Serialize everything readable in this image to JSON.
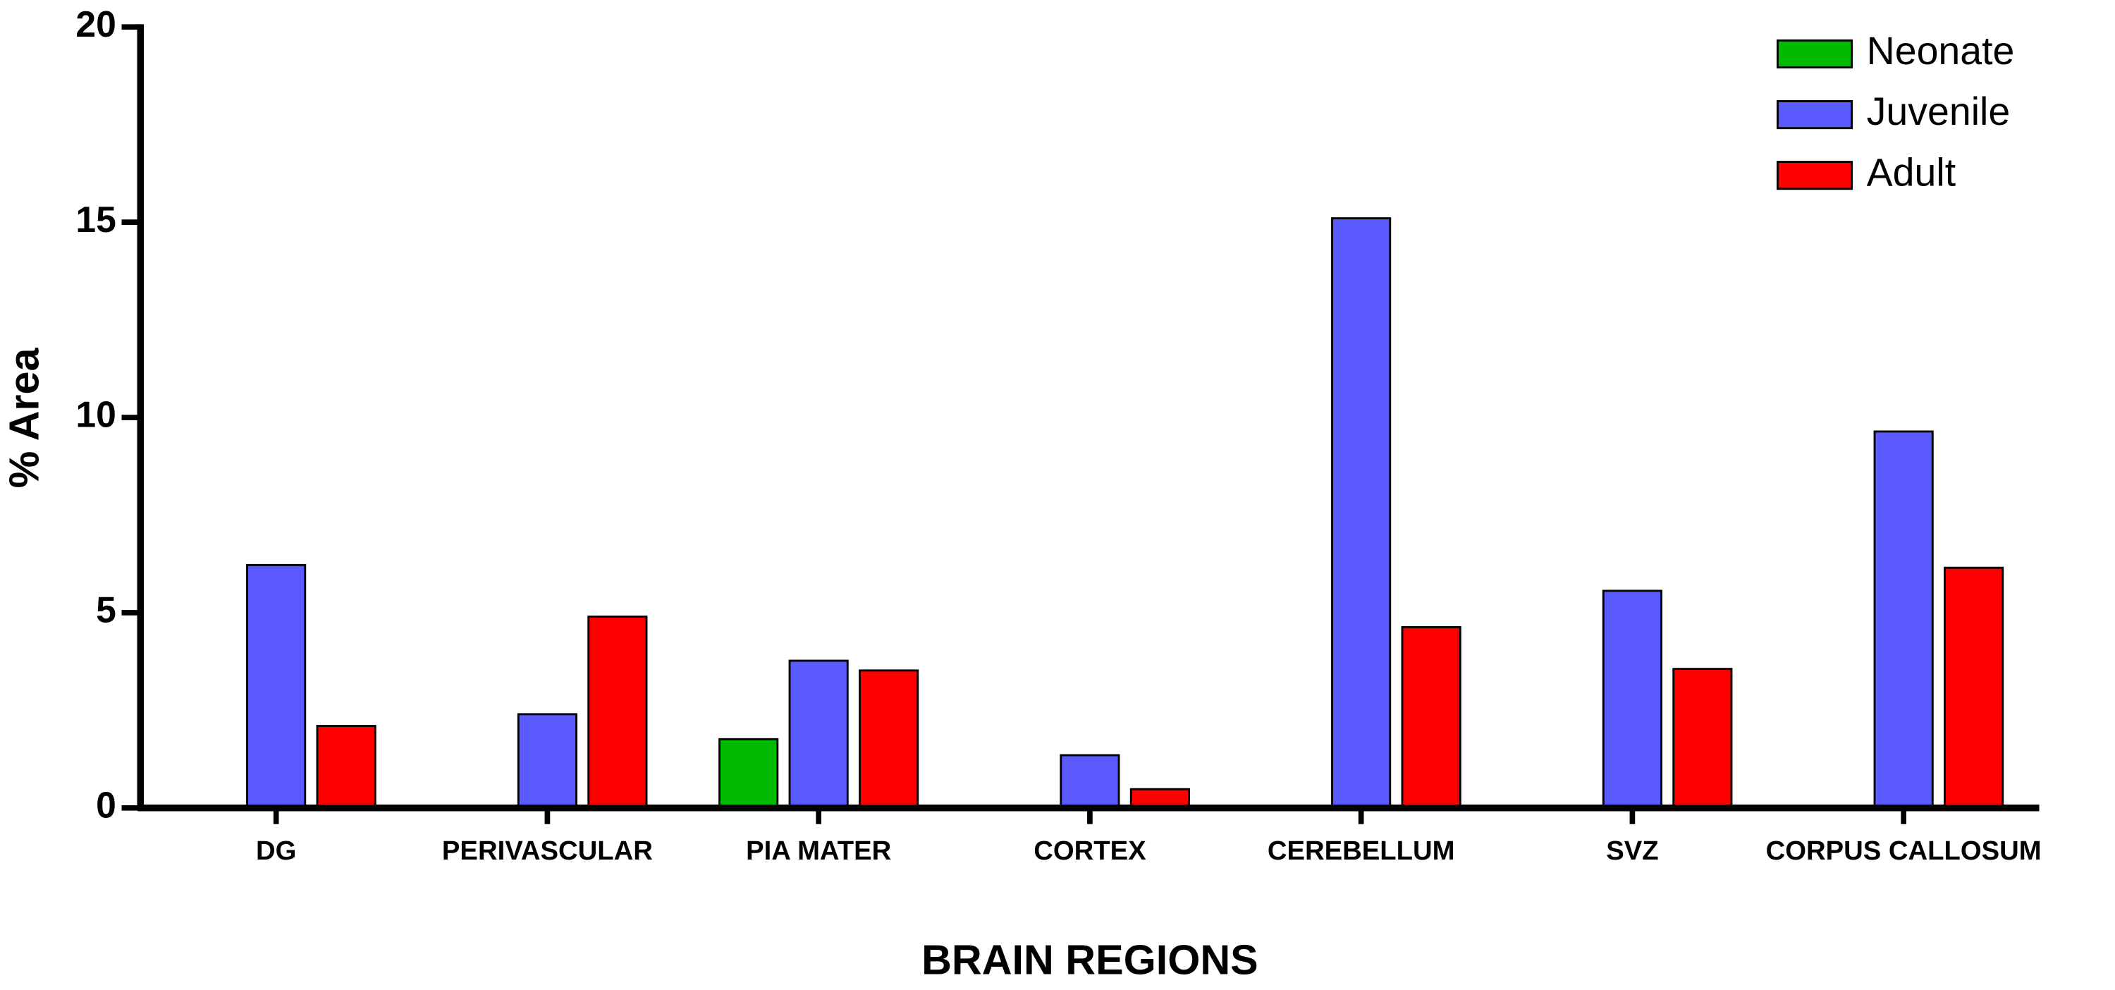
{
  "chart_data": {
    "type": "bar",
    "x_label": "BRAIN REGIONS",
    "y_label": "% Area",
    "categories": [
      "DG",
      "PERIVASCULAR",
      "PIA MATER",
      "CORTEX",
      "CEREBELLUM",
      "SVZ",
      "CORPUS CALLOSUM"
    ],
    "series": [
      {
        "name": "Neonate",
        "color": "#00bb00",
        "values": [
          null,
          null,
          1.76,
          null,
          null,
          null,
          null
        ]
      },
      {
        "name": "Juvenile",
        "color": "#5a5aff",
        "values": [
          6.22,
          2.4,
          3.77,
          1.35,
          15.1,
          5.56,
          9.64
        ]
      },
      {
        "name": "Adult",
        "color": "#ff0000",
        "values": [
          2.1,
          4.9,
          3.52,
          0.48,
          4.63,
          3.56,
          6.15
        ]
      }
    ],
    "ylim": [
      0,
      20
    ],
    "yticks": [
      0,
      5,
      10,
      15,
      20
    ],
    "legend": "top-right"
  }
}
